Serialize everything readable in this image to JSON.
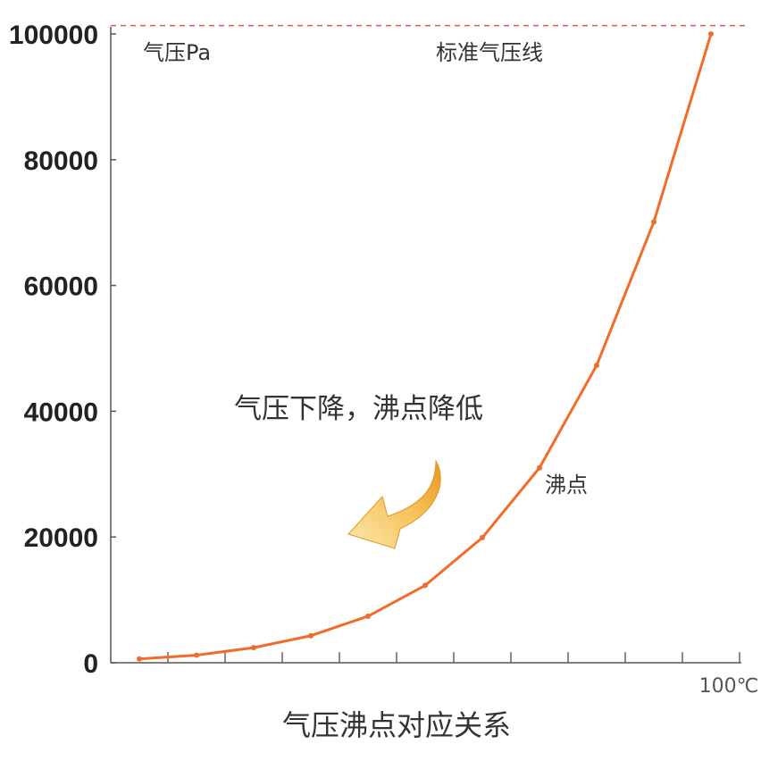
{
  "chart_data": {
    "type": "line",
    "title": "",
    "caption": "气压沸点对应关系",
    "ylabel": "气压Pa",
    "x_end_label": "100℃",
    "reference_line_label": "标准气压线",
    "reference_value": 101325,
    "curve_label": "沸点",
    "callout": "气压下降，沸点降低",
    "ylim": [
      0,
      100000
    ],
    "y_ticks": [
      "0",
      "20000",
      "40000",
      "60000",
      "80000",
      "100000"
    ],
    "x_tick_count": 11,
    "series": [
      {
        "values": [
          600,
          1200,
          2400,
          4300,
          7400,
          12300,
          19900,
          31000,
          47300,
          70100,
          100000
        ]
      }
    ],
    "colors": {
      "line": "#f26b2a",
      "reference": "#e05555",
      "arrow": "#f0a830"
    }
  }
}
